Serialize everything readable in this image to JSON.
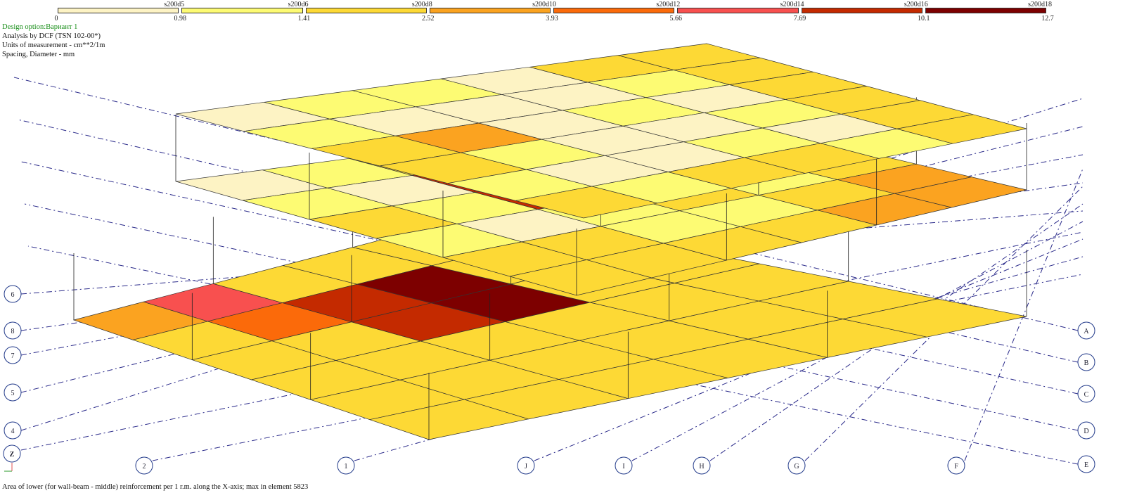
{
  "legend": {
    "items": [
      {
        "name": "s200d5",
        "from": "0",
        "to": "0.98",
        "color": "#fdf3c4"
      },
      {
        "name": "s200d6",
        "from": "0.98",
        "to": "1.41",
        "color": "#fdfb73"
      },
      {
        "name": "s200d8",
        "from": "1.41",
        "to": "2.52",
        "color": "#fdd935"
      },
      {
        "name": "s200d10",
        "from": "2.52",
        "to": "3.93",
        "color": "#fba320"
      },
      {
        "name": "s200d12",
        "from": "3.93",
        "to": "5.66",
        "color": "#fb6a0a"
      },
      {
        "name": "s200d14",
        "from": "5.66",
        "to": "7.69",
        "color": "#f8504f"
      },
      {
        "name": "s200d16",
        "from": "7.69",
        "to": "10.1",
        "color": "#c42a00"
      },
      {
        "name": "s200d18",
        "from": "10.1",
        "to": "12.7",
        "color": "#7d0000"
      }
    ],
    "start": "0"
  },
  "info": {
    "design_option": "Design option:Вариант 1",
    "analysis": "Analysis by DCF (TSN 102-00*)",
    "units": "Units of measurement - cm**2/1m",
    "spacing": "Spacing, Diameter - mm"
  },
  "caption": "Area of lower (for wall-beam - middle) reinforcement per 1 r.m. along the X-axis; max in element 5823",
  "axes": {
    "left": [
      "6",
      "8",
      "7",
      "5",
      "4"
    ],
    "bottom": [
      "2",
      "1",
      "J",
      "I",
      "H",
      "G",
      "F"
    ],
    "right": [
      "A",
      "B",
      "C",
      "D",
      "E"
    ],
    "z_label": "Z"
  },
  "slabs": {
    "top": [
      [
        0,
        1,
        1,
        0,
        2,
        2
      ],
      [
        1,
        0,
        0,
        0,
        1,
        2
      ],
      [
        2,
        3,
        0,
        1,
        0,
        2
      ],
      [
        2,
        1,
        0,
        0,
        1,
        2
      ],
      [
        1,
        0,
        0,
        1,
        0,
        2
      ],
      [
        2,
        1,
        2,
        2,
        1,
        2
      ]
    ],
    "middle": [
      [
        0,
        1,
        2,
        2,
        2,
        2
      ],
      [
        1,
        0,
        6,
        0,
        1,
        2
      ],
      [
        2,
        1,
        6,
        1,
        0,
        2
      ],
      [
        1,
        0,
        1,
        2,
        1,
        2
      ],
      [
        2,
        2,
        1,
        1,
        2,
        3
      ],
      [
        2,
        2,
        2,
        2,
        3,
        3
      ]
    ],
    "lower": [
      [
        3,
        5,
        2,
        2,
        2,
        2
      ],
      [
        2,
        4,
        6,
        7,
        2,
        2
      ],
      [
        2,
        2,
        6,
        7,
        2,
        2
      ],
      [
        2,
        2,
        2,
        2,
        2,
        2
      ],
      [
        2,
        2,
        2,
        2,
        2,
        2
      ],
      [
        2,
        2,
        2,
        2,
        2,
        2
      ]
    ]
  }
}
